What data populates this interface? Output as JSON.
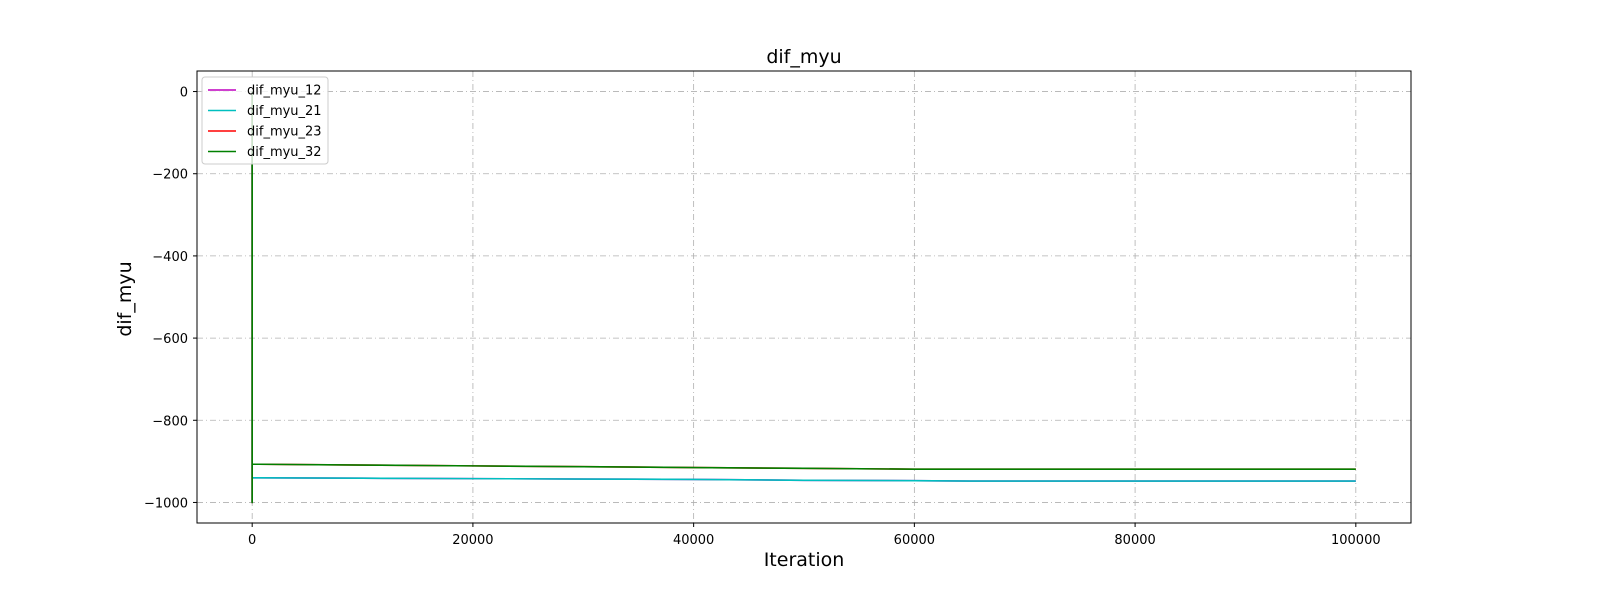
{
  "chart_data": {
    "type": "line",
    "title": "dif_myu",
    "xlabel": "Iteration",
    "ylabel": "dif_myu",
    "xlim": [
      -5000,
      105000
    ],
    "ylim": [
      -1050,
      50
    ],
    "xticks": [
      0,
      20000,
      40000,
      60000,
      80000,
      100000
    ],
    "yticks": [
      0,
      -200,
      -400,
      -600,
      -800,
      -1000
    ],
    "grid": true,
    "legend_position": "top-left",
    "series": [
      {
        "name": "dif_myu_12",
        "color": "#bf00bf",
        "x": [
          0,
          0,
          0,
          600,
          10000,
          20000,
          30000,
          40000,
          50000,
          60000,
          65000,
          70000,
          80000,
          90000,
          100000
        ],
        "y": [
          0,
          -1000,
          -940,
          -940,
          -941,
          -942,
          -943,
          -944,
          -946,
          -947,
          -948,
          -948,
          -948,
          -948,
          -948
        ]
      },
      {
        "name": "dif_myu_21",
        "color": "#00bfbf",
        "x": [
          0,
          0,
          0,
          600,
          10000,
          20000,
          30000,
          40000,
          50000,
          60000,
          65000,
          70000,
          80000,
          90000,
          100000
        ],
        "y": [
          0,
          -1000,
          -940,
          -940,
          -941,
          -942,
          -943,
          -944,
          -946,
          -947,
          -948,
          -948,
          -948,
          -948,
          -948
        ]
      },
      {
        "name": "dif_myu_23",
        "color": "#ff0000",
        "x": [
          0,
          0,
          0,
          600,
          10000,
          20000,
          30000,
          40000,
          50000,
          60000,
          65000,
          70000,
          80000,
          90000,
          100000
        ],
        "y": [
          0,
          -1000,
          -907,
          -907,
          -909,
          -911,
          -913,
          -915,
          -917,
          -919,
          -919,
          -919,
          -919,
          -919,
          -919
        ]
      },
      {
        "name": "dif_myu_32",
        "color": "#008000",
        "x": [
          0,
          0,
          0,
          600,
          10000,
          20000,
          30000,
          40000,
          50000,
          60000,
          65000,
          70000,
          80000,
          90000,
          100000
        ],
        "y": [
          0,
          -1000,
          -907,
          -907,
          -909,
          -911,
          -913,
          -915,
          -917,
          -919,
          -919,
          -919,
          -919,
          -919,
          -919
        ]
      }
    ]
  }
}
